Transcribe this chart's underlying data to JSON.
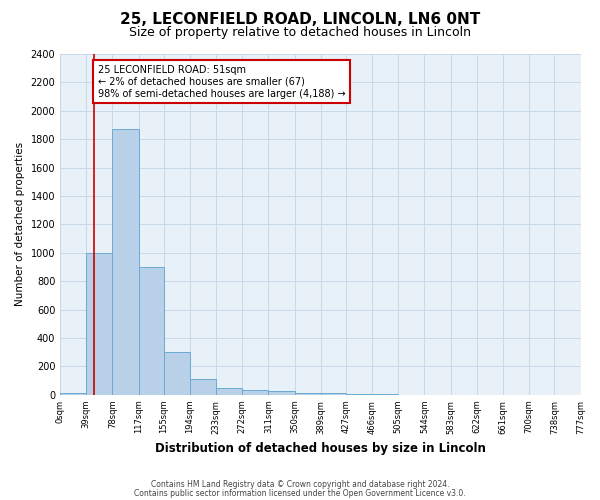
{
  "title": "25, LECONFIELD ROAD, LINCOLN, LN6 0NT",
  "subtitle": "Size of property relative to detached houses in Lincoln",
  "xlabel": "Distribution of detached houses by size in Lincoln",
  "ylabel": "Number of detached properties",
  "bar_edges": [
    0,
    39,
    78,
    117,
    155,
    194,
    233,
    272,
    311,
    350,
    389,
    427,
    466,
    505,
    544,
    583,
    622,
    661,
    700,
    738,
    777
  ],
  "bar_heights": [
    10,
    1000,
    1870,
    900,
    300,
    110,
    45,
    35,
    25,
    15,
    10,
    5,
    3,
    2,
    2,
    1,
    1,
    1,
    0,
    0
  ],
  "bar_color": "#b8d0e8",
  "bar_edgecolor": "#6aaad4",
  "bar_linewidth": 0.7,
  "red_line_x": 51,
  "red_line_color": "#cc0000",
  "annotation_text": "25 LECONFIELD ROAD: 51sqm\n← 2% of detached houses are smaller (67)\n98% of semi-detached houses are larger (4,188) →",
  "annotation_box_color": "#cc0000",
  "ylim": [
    0,
    2400
  ],
  "yticks": [
    0,
    200,
    400,
    600,
    800,
    1000,
    1200,
    1400,
    1600,
    1800,
    2000,
    2200,
    2400
  ],
  "tick_labels": [
    "0sqm",
    "39sqm",
    "78sqm",
    "117sqm",
    "155sqm",
    "194sqm",
    "233sqm",
    "272sqm",
    "311sqm",
    "350sqm",
    "389sqm",
    "427sqm",
    "466sqm",
    "505sqm",
    "544sqm",
    "583sqm",
    "622sqm",
    "661sqm",
    "700sqm",
    "738sqm",
    "777sqm"
  ],
  "footer_line1": "Contains HM Land Registry data © Crown copyright and database right 2024.",
  "footer_line2": "Contains public sector information licensed under the Open Government Licence v3.0.",
  "background_color": "#ffffff",
  "plot_bg_color": "#e8f0f8",
  "grid_color": "#c8daea",
  "title_fontsize": 11,
  "subtitle_fontsize": 9
}
